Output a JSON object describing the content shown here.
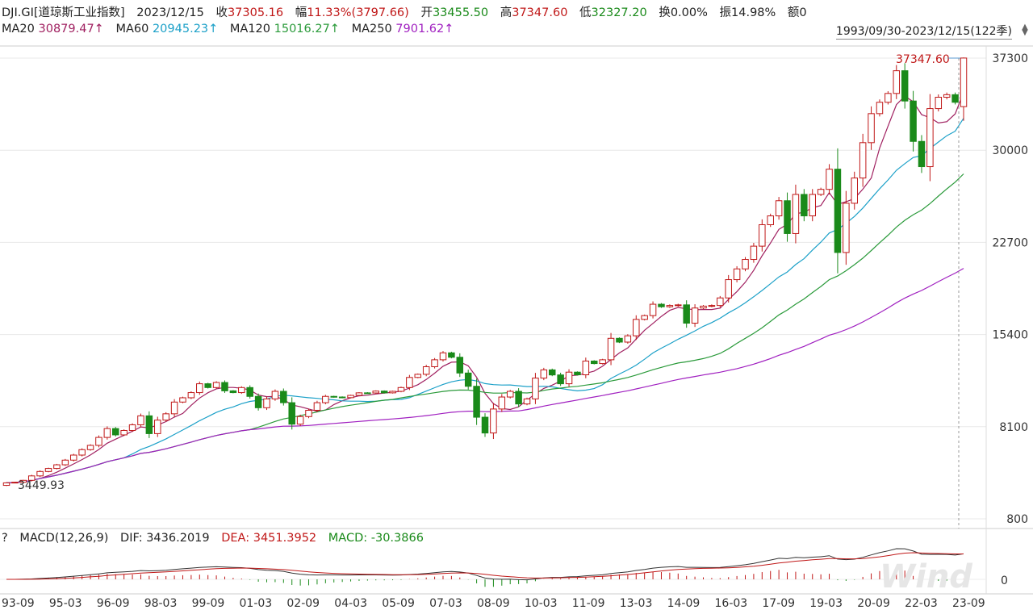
{
  "header": {
    "symbol": "DJI.GI[道琼斯工业指数]",
    "date": "2023/12/15",
    "close_label": "收",
    "close_value": "37305.16",
    "change_label": "幅",
    "change_value": "11.33%(3797.66)",
    "open_label": "开",
    "open_value": "33455.50",
    "high_label": "高",
    "high_value": "37347.60",
    "low_label": "低",
    "low_value": "32327.20",
    "turnover_label": "换",
    "turnover_value": "0.00%",
    "amplitude_label": "振",
    "amplitude_value": "14.98%",
    "amount_label": "额",
    "amount_value": "0"
  },
  "ma_legend": [
    {
      "label": "MA20",
      "value": "30879.47↑",
      "color": "#a02060"
    },
    {
      "label": "MA60",
      "value": "20945.23↑",
      "color": "#1ba0c8"
    },
    {
      "label": "MA120",
      "value": "15016.27↑",
      "color": "#2a9a3a"
    },
    {
      "label": "MA250",
      "value": "7901.62↑",
      "color": "#a020c0"
    }
  ],
  "range": "1993/09/30-2023/12/15(122季)",
  "macd_header": {
    "help": "?",
    "title": "MACD(12,26,9)",
    "dif_label": "DIF:",
    "dif_value": "3436.2019",
    "dea_label": "DEA:",
    "dea_value": "3451.3952",
    "macd_label": "MACD:",
    "macd_value": "-30.3866"
  },
  "watermark": "Wind",
  "chart_data": {
    "type": "candlestick",
    "y_ticks": [
      "37300",
      "30000",
      "22700",
      "15400",
      "8100",
      "800"
    ],
    "y_tick_values": [
      37300,
      30000,
      22700,
      15400,
      8100,
      800
    ],
    "x_ticks": [
      "93-09",
      "95-03",
      "96-09",
      "98-03",
      "99-09",
      "01-03",
      "02-09",
      "04-03",
      "05-09",
      "07-03",
      "08-09",
      "10-03",
      "11-09",
      "13-03",
      "14-09",
      "16-03",
      "17-09",
      "19-03",
      "20-09",
      "22-03",
      "23-09"
    ],
    "annotations": {
      "max_label": "37347.60",
      "min_label": "3449.93"
    },
    "macd_y_ticks": [
      "0"
    ],
    "colors": {
      "up": "#c01818",
      "down": "#1a8a1a",
      "ma20": "#a02060",
      "ma60": "#1ba0c8",
      "ma120": "#2a9a3a",
      "ma250": "#a020c0"
    },
    "closes": [
      3650,
      3700,
      3850,
      4200,
      4550,
      4790,
      5080,
      5450,
      5850,
      6280,
      6620,
      7250,
      7950,
      7450,
      7800,
      8250,
      8960,
      7550,
      8620,
      9120,
      10050,
      10390,
      10800,
      11500,
      11200,
      11600,
      10940,
      10800,
      11200,
      10500,
      9600,
      10300,
      10900,
      10000,
      8300,
      8900,
      9400,
      10000,
      10500,
      10450,
      10400,
      10580,
      10780,
      10770,
      10920,
      10780,
      10900,
      11200,
      12000,
      12250,
      12850,
      13400,
      13950,
      13600,
      12350,
      11300,
      8850,
      7600,
      9500,
      10450,
      10900,
      9900,
      10300,
      11950,
      12600,
      12200,
      11500,
      12420,
      12210,
      13300,
      13100,
      13400,
      15100,
      14800,
      15300,
      16600,
      16900,
      17800,
      17600,
      17700,
      17750,
      16300,
      17500,
      17650,
      17700,
      18300,
      19750,
      20600,
      21350,
      22400,
      24100,
      24800,
      26000,
      23400,
      26500,
      24800,
      26500,
      26900,
      28500,
      21900,
      25800,
      27800,
      30600,
      32900,
      33800,
      34500,
      36300,
      33900,
      30700,
      28700,
      33300,
      34200,
      34400,
      33800,
      37305
    ]
  }
}
